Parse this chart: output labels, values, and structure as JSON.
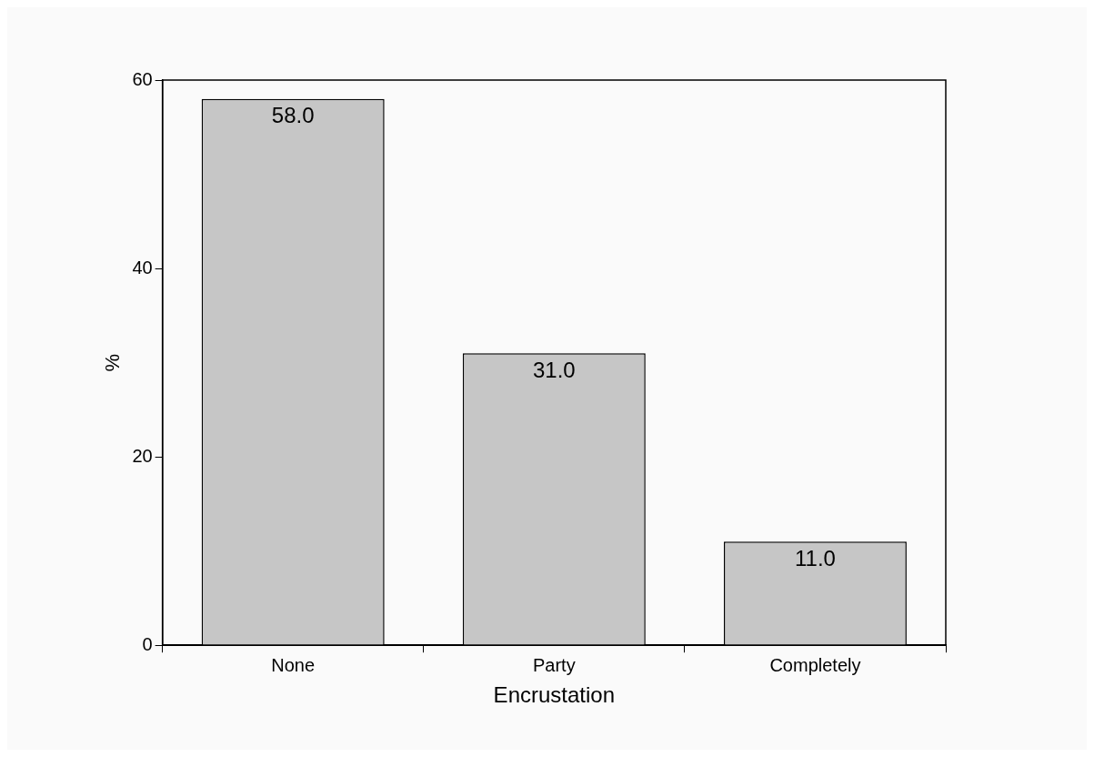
{
  "chart_data": {
    "type": "bar",
    "xlabel": "Encrustation",
    "ylabel": "%",
    "categories": [
      "None",
      "Party",
      "Completely"
    ],
    "values": [
      58.0,
      31.0,
      11.0
    ],
    "color": "#c6c6c6",
    "ylim": [
      0,
      60
    ],
    "yticks": [
      0,
      20,
      40,
      60
    ],
    "grid": false,
    "legend": false,
    "value_labels": [
      "58.0",
      "31.0",
      "11.0"
    ]
  }
}
